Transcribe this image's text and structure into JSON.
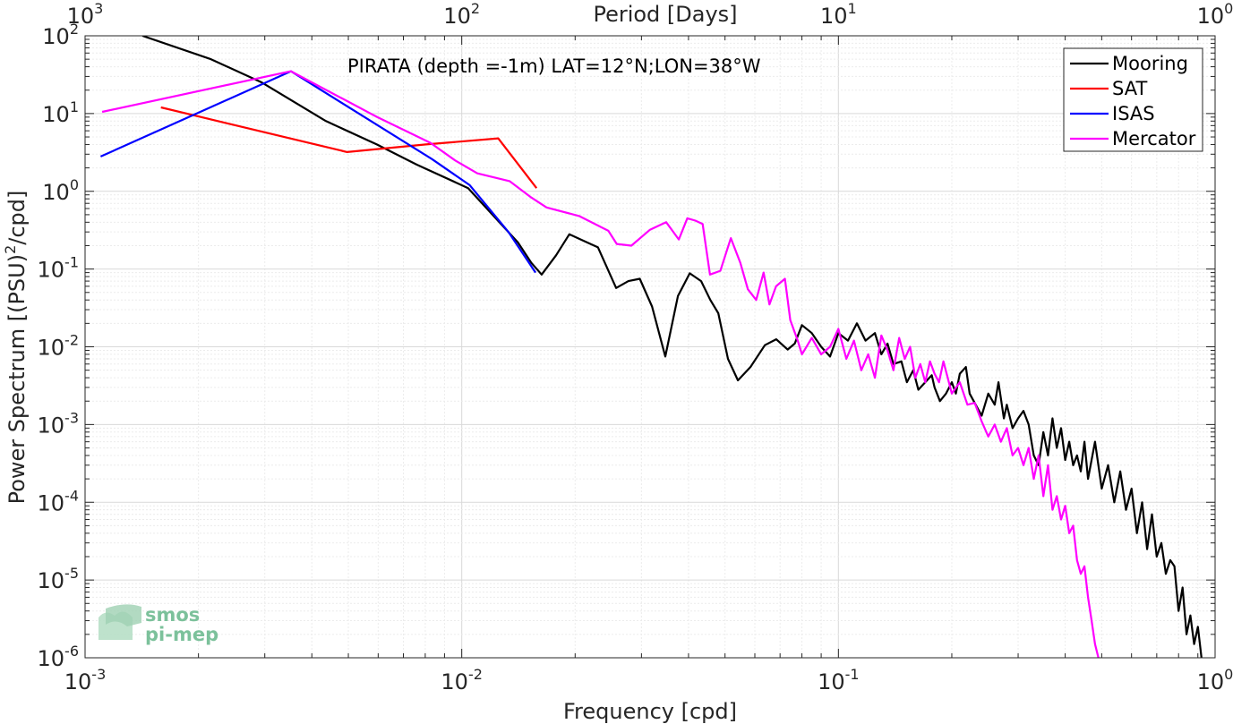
{
  "chart_data": {
    "type": "line",
    "title": "PIRATA (depth =-1m) LAT=12°N;LON=38°W",
    "xlabel": "Frequency [cpd]",
    "x2label": "Period [Days]",
    "ylabel_main": "Power Spectrum [(PSU)",
    "ylabel_sup": "2",
    "ylabel_tail": "/cpd]",
    "xscale": "log",
    "yscale": "log",
    "xlim": [
      0.001,
      1
    ],
    "ylim": [
      1e-06,
      100
    ],
    "grid": true,
    "legend_position": "top-right",
    "x_ticks": [
      {
        "value": 0.001,
        "base": "10",
        "exp": "-3"
      },
      {
        "value": 0.01,
        "base": "10",
        "exp": "-2"
      },
      {
        "value": 0.1,
        "base": "10",
        "exp": "-1"
      },
      {
        "value": 1,
        "base": "10",
        "exp": "0"
      }
    ],
    "x2_ticks": [
      {
        "value": 0.001,
        "base": "10",
        "exp": "3"
      },
      {
        "value": 0.01,
        "base": "10",
        "exp": "2"
      },
      {
        "value": 0.1,
        "base": "10",
        "exp": "1"
      },
      {
        "value": 1,
        "base": "10",
        "exp": "0"
      }
    ],
    "y_ticks": [
      {
        "value": 100,
        "base": "10",
        "exp": "2"
      },
      {
        "value": 10,
        "base": "10",
        "exp": "1"
      },
      {
        "value": 1,
        "base": "10",
        "exp": "0"
      },
      {
        "value": 0.1,
        "base": "10",
        "exp": "-1"
      },
      {
        "value": 0.01,
        "base": "10",
        "exp": "-2"
      },
      {
        "value": 0.001,
        "base": "10",
        "exp": "-3"
      },
      {
        "value": 0.0001,
        "base": "10",
        "exp": "-4"
      },
      {
        "value": 1e-05,
        "base": "10",
        "exp": "-5"
      },
      {
        "value": 1e-06,
        "base": "10",
        "exp": "-6"
      }
    ],
    "series": [
      {
        "name": "Mooring",
        "color": "#000000",
        "points": [
          [
            0.00142,
            100
          ],
          [
            0.00216,
            50
          ],
          [
            0.00295,
            25
          ],
          [
            0.00436,
            8
          ],
          [
            0.00595,
            4
          ],
          [
            0.0076,
            2.2
          ],
          [
            0.0104,
            1.1
          ],
          [
            0.0141,
            0.22
          ],
          [
            0.0153,
            0.12
          ],
          [
            0.0163,
            0.085
          ],
          [
            0.0178,
            0.15
          ],
          [
            0.0193,
            0.28
          ],
          [
            0.0211,
            0.23
          ],
          [
            0.023,
            0.19
          ],
          [
            0.0257,
            0.057
          ],
          [
            0.0277,
            0.07
          ],
          [
            0.0297,
            0.075
          ],
          [
            0.032,
            0.033
          ],
          [
            0.0347,
            0.0075
          ],
          [
            0.0375,
            0.045
          ],
          [
            0.0403,
            0.088
          ],
          [
            0.0432,
            0.07
          ],
          [
            0.0457,
            0.04
          ],
          [
            0.048,
            0.027
          ],
          [
            0.0509,
            0.007
          ],
          [
            0.0541,
            0.0037
          ],
          [
            0.0584,
            0.0055
          ],
          [
            0.0638,
            0.0105
          ],
          [
            0.0684,
            0.0125
          ],
          [
            0.0733,
            0.0092
          ],
          [
            0.0766,
            0.011
          ],
          [
            0.08,
            0.019
          ],
          [
            0.085,
            0.015
          ],
          [
            0.09,
            0.01
          ],
          [
            0.095,
            0.0075
          ],
          [
            0.1,
            0.015
          ],
          [
            0.106,
            0.012
          ],
          [
            0.112,
            0.02
          ],
          [
            0.118,
            0.012
          ],
          [
            0.125,
            0.015
          ],
          [
            0.13,
            0.008
          ],
          [
            0.135,
            0.011
          ],
          [
            0.14,
            0.006
          ],
          [
            0.147,
            0.0065
          ],
          [
            0.152,
            0.0035
          ],
          [
            0.158,
            0.005
          ],
          [
            0.163,
            0.0028
          ],
          [
            0.17,
            0.0035
          ],
          [
            0.177,
            0.0043
          ],
          [
            0.18,
            0.003
          ],
          [
            0.186,
            0.002
          ],
          [
            0.193,
            0.0025
          ],
          [
            0.2,
            0.0035
          ],
          [
            0.205,
            0.0025
          ],
          [
            0.21,
            0.0045
          ],
          [
            0.218,
            0.0055
          ],
          [
            0.223,
            0.0025
          ],
          [
            0.23,
            0.0019
          ],
          [
            0.24,
            0.0013
          ],
          [
            0.25,
            0.0025
          ],
          [
            0.26,
            0.0018
          ],
          [
            0.266,
            0.0035
          ],
          [
            0.275,
            0.0012
          ],
          [
            0.28,
            0.0018
          ],
          [
            0.29,
            0.0009
          ],
          [
            0.3,
            0.0012
          ],
          [
            0.31,
            0.0015
          ],
          [
            0.32,
            0.001
          ],
          [
            0.33,
            0.0004
          ],
          [
            0.34,
            0.0003
          ],
          [
            0.35,
            0.0008
          ],
          [
            0.36,
            0.0004
          ],
          [
            0.37,
            0.0012
          ],
          [
            0.38,
            0.0005
          ],
          [
            0.39,
            0.0009
          ],
          [
            0.4,
            0.00035
          ],
          [
            0.41,
            0.0006
          ],
          [
            0.42,
            0.0003
          ],
          [
            0.43,
            0.0004
          ],
          [
            0.44,
            0.00025
          ],
          [
            0.45,
            0.0006
          ],
          [
            0.46,
            0.0002
          ],
          [
            0.48,
            0.0006
          ],
          [
            0.5,
            0.00015
          ],
          [
            0.52,
            0.0003
          ],
          [
            0.54,
            0.0001
          ],
          [
            0.56,
            0.00025
          ],
          [
            0.58,
            8e-05
          ],
          [
            0.6,
            0.00015
          ],
          [
            0.62,
            4e-05
          ],
          [
            0.64,
            0.0001
          ],
          [
            0.66,
            2.5e-05
          ],
          [
            0.68,
            7e-05
          ],
          [
            0.7,
            2e-05
          ],
          [
            0.72,
            3e-05
          ],
          [
            0.74,
            1.2e-05
          ],
          [
            0.76,
            1.8e-05
          ],
          [
            0.78,
            1.5e-05
          ],
          [
            0.8,
            4e-06
          ],
          [
            0.82,
            8e-06
          ],
          [
            0.84,
            2e-06
          ],
          [
            0.86,
            3.5e-06
          ],
          [
            0.88,
            1.5e-06
          ],
          [
            0.9,
            2.5e-06
          ],
          [
            0.92,
            1e-06
          ]
        ]
      },
      {
        "name": "SAT",
        "color": "#ff0000",
        "points": [
          [
            0.00159,
            12
          ],
          [
            0.00496,
            3.2
          ],
          [
            0.00803,
            4.0
          ],
          [
            0.0125,
            4.8
          ],
          [
            0.0158,
            1.1
          ]
        ]
      },
      {
        "name": "ISAS",
        "color": "#0000ff",
        "points": [
          [
            0.0011,
            2.8
          ],
          [
            0.00352,
            35
          ],
          [
            0.00833,
            2.6
          ],
          [
            0.0105,
            1.2
          ],
          [
            0.0133,
            0.3
          ],
          [
            0.0157,
            0.09
          ]
        ]
      },
      {
        "name": "Mercator",
        "color": "#ff00ff",
        "points": [
          [
            0.00111,
            10.5
          ],
          [
            0.00352,
            35
          ],
          [
            0.00597,
            9
          ],
          [
            0.00826,
            4.2
          ],
          [
            0.0096,
            2.5
          ],
          [
            0.011,
            1.7
          ],
          [
            0.0134,
            1.35
          ],
          [
            0.0152,
            0.85
          ],
          [
            0.0168,
            0.62
          ],
          [
            0.0205,
            0.48
          ],
          [
            0.0245,
            0.31
          ],
          [
            0.0258,
            0.21
          ],
          [
            0.0282,
            0.2
          ],
          [
            0.0316,
            0.32
          ],
          [
            0.0349,
            0.4
          ],
          [
            0.0377,
            0.24
          ],
          [
            0.0397,
            0.45
          ],
          [
            0.0417,
            0.42
          ],
          [
            0.0436,
            0.38
          ],
          [
            0.0456,
            0.085
          ],
          [
            0.0486,
            0.095
          ],
          [
            0.0518,
            0.25
          ],
          [
            0.0549,
            0.12
          ],
          [
            0.0575,
            0.055
          ],
          [
            0.0605,
            0.04
          ],
          [
            0.0633,
            0.09
          ],
          [
            0.0656,
            0.035
          ],
          [
            0.0683,
            0.06
          ],
          [
            0.0721,
            0.075
          ],
          [
            0.0745,
            0.022
          ],
          [
            0.078,
            0.012
          ],
          [
            0.08,
            0.008
          ],
          [
            0.085,
            0.013
          ],
          [
            0.09,
            0.008
          ],
          [
            0.095,
            0.01
          ],
          [
            0.1,
            0.017
          ],
          [
            0.105,
            0.007
          ],
          [
            0.11,
            0.012
          ],
          [
            0.115,
            0.005
          ],
          [
            0.12,
            0.008
          ],
          [
            0.125,
            0.004
          ],
          [
            0.13,
            0.014
          ],
          [
            0.135,
            0.009
          ],
          [
            0.14,
            0.005
          ],
          [
            0.145,
            0.013
          ],
          [
            0.15,
            0.007
          ],
          [
            0.155,
            0.01
          ],
          [
            0.16,
            0.004
          ],
          [
            0.165,
            0.006
          ],
          [
            0.17,
            0.0035
          ],
          [
            0.175,
            0.0065
          ],
          [
            0.18,
            0.0045
          ],
          [
            0.185,
            0.0035
          ],
          [
            0.19,
            0.0065
          ],
          [
            0.2,
            0.0025
          ],
          [
            0.21,
            0.0035
          ],
          [
            0.22,
            0.0018
          ],
          [
            0.23,
            0.0019
          ],
          [
            0.24,
            0.0011
          ],
          [
            0.25,
            0.0007
          ],
          [
            0.26,
            0.001
          ],
          [
            0.27,
            0.0006
          ],
          [
            0.28,
            0.0009
          ],
          [
            0.29,
            0.0004
          ],
          [
            0.3,
            0.0005
          ],
          [
            0.31,
            0.0003
          ],
          [
            0.32,
            0.0005
          ],
          [
            0.33,
            0.0002
          ],
          [
            0.34,
            0.0004
          ],
          [
            0.35,
            0.00012
          ],
          [
            0.36,
            0.0003
          ],
          [
            0.37,
            8e-05
          ],
          [
            0.38,
            0.00012
          ],
          [
            0.39,
            6e-05
          ],
          [
            0.4,
            9e-05
          ],
          [
            0.41,
            4e-05
          ],
          [
            0.42,
            5e-05
          ],
          [
            0.43,
            1.8e-05
          ],
          [
            0.44,
            1.2e-05
          ],
          [
            0.45,
            1.5e-05
          ],
          [
            0.46,
            6e-06
          ],
          [
            0.47,
            3e-06
          ],
          [
            0.48,
            1.5e-06
          ],
          [
            0.49,
            1e-06
          ]
        ]
      }
    ]
  },
  "logo": {
    "line1": "smos",
    "line2": "pi-mep"
  }
}
